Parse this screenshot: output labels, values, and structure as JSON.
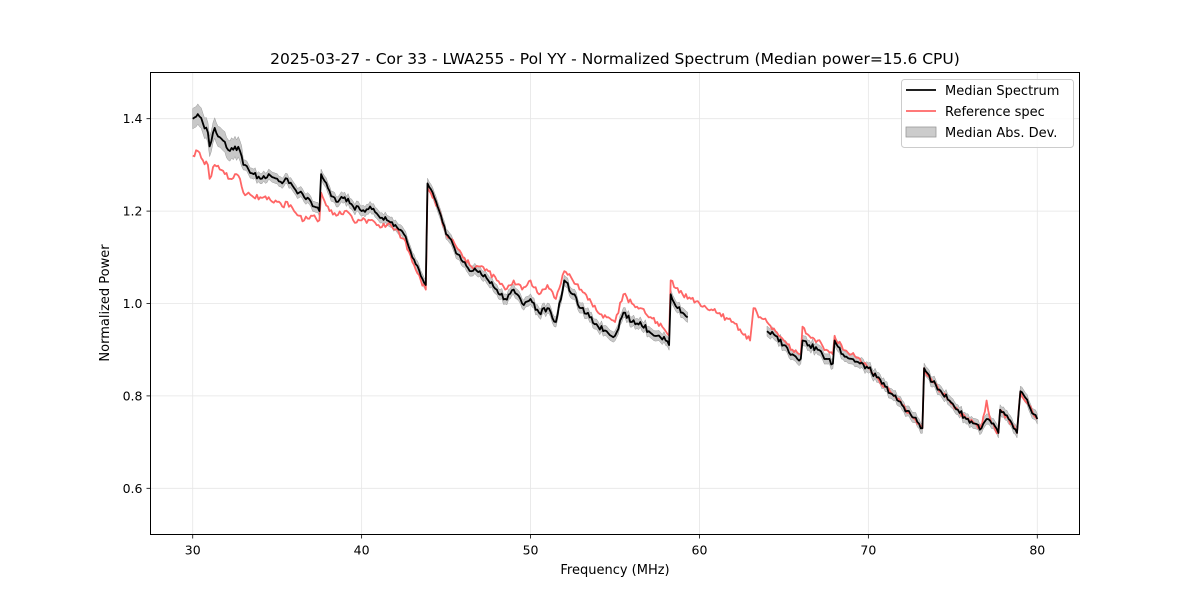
{
  "chart_data": {
    "type": "line",
    "title": "2025-03-27 - Cor 33 - LWA255 - Pol YY - Normalized Spectrum (Median power=15.6 CPU)",
    "xlabel": "Frequency (MHz)",
    "ylabel": "Normalized Power",
    "xlim": [
      27.5,
      82.5
    ],
    "ylim": [
      0.5,
      1.5
    ],
    "xticks": [
      30,
      40,
      50,
      60,
      70,
      80
    ],
    "yticks": [
      0.6,
      0.8,
      1.0,
      1.2,
      1.4
    ],
    "xtick_labels": [
      "30",
      "40",
      "50",
      "60",
      "70",
      "80"
    ],
    "ytick_labels": [
      "0.6",
      "0.8",
      "1.0",
      "1.2",
      "1.4"
    ],
    "grid": true,
    "legend_position": "top-right",
    "series": [
      {
        "name": "Median Spectrum",
        "color": "#000000",
        "segments": [
          {
            "x": [
              30.0,
              30.3,
              30.6,
              30.9,
              31.0,
              31.3,
              31.6,
              31.9,
              32.2,
              32.5,
              32.8,
              33.0,
              33.3,
              33.6,
              34.0,
              34.5,
              35.0,
              35.3,
              35.6,
              36.0,
              36.3,
              36.6,
              37.0,
              37.5,
              37.6,
              38.0,
              38.5,
              39.0,
              39.5,
              40.0,
              40.5,
              41.0,
              41.5,
              42.0,
              42.5,
              43.0,
              43.5,
              43.8,
              43.9,
              44.5,
              45.0,
              45.5,
              46.0,
              46.5,
              47.0,
              47.5,
              48.0,
              48.5,
              49.0,
              49.5,
              50.0,
              50.5,
              51.0,
              51.5,
              52.0,
              52.5,
              53.0,
              53.5,
              54.0,
              54.5,
              55.0,
              55.5,
              56.0,
              56.5,
              57.0,
              57.5,
              58.0,
              58.2,
              58.3,
              58.7,
              59.0,
              59.3
            ],
            "y": [
              1.4,
              1.41,
              1.39,
              1.37,
              1.34,
              1.38,
              1.36,
              1.35,
              1.33,
              1.34,
              1.33,
              1.3,
              1.29,
              1.28,
              1.27,
              1.28,
              1.27,
              1.26,
              1.27,
              1.25,
              1.24,
              1.23,
              1.22,
              1.2,
              1.28,
              1.25,
              1.22,
              1.23,
              1.21,
              1.2,
              1.21,
              1.19,
              1.18,
              1.17,
              1.15,
              1.1,
              1.06,
              1.04,
              1.26,
              1.21,
              1.15,
              1.12,
              1.09,
              1.07,
              1.07,
              1.05,
              1.03,
              1.01,
              1.03,
              1.0,
              1.01,
              0.98,
              0.99,
              0.96,
              1.05,
              1.02,
              0.99,
              0.97,
              0.95,
              0.94,
              0.93,
              0.98,
              0.96,
              0.96,
              0.94,
              0.93,
              0.92,
              0.91,
              1.02,
              0.99,
              0.98,
              0.97
            ]
          },
          {
            "x": [
              64.0,
              64.5,
              65.0,
              65.5,
              66.0,
              66.1,
              66.5,
              67.0,
              67.5,
              67.9,
              68.0,
              68.5,
              69.0,
              69.5,
              70.0,
              70.5,
              71.0,
              71.5,
              72.0,
              72.5,
              73.0,
              73.2,
              73.3,
              73.8,
              74.3,
              74.8,
              75.3,
              75.8,
              76.3,
              76.7,
              77.0,
              77.3,
              77.7,
              77.8,
              78.3,
              78.8,
              79.0,
              79.5,
              80.0
            ],
            "y": [
              0.94,
              0.93,
              0.91,
              0.89,
              0.88,
              0.92,
              0.91,
              0.9,
              0.88,
              0.87,
              0.92,
              0.89,
              0.88,
              0.87,
              0.86,
              0.84,
              0.82,
              0.8,
              0.78,
              0.76,
              0.74,
              0.73,
              0.86,
              0.83,
              0.81,
              0.79,
              0.77,
              0.75,
              0.74,
              0.73,
              0.75,
              0.74,
              0.72,
              0.77,
              0.75,
              0.72,
              0.81,
              0.78,
              0.75
            ]
          }
        ]
      },
      {
        "name": "Reference spec",
        "color": "#ff6666",
        "segments": [
          {
            "x": [
              30.0,
              30.3,
              30.6,
              30.9,
              31.0,
              31.3,
              31.6,
              31.9,
              32.2,
              32.5,
              32.8,
              33.0,
              33.3,
              33.6,
              34.0,
              34.5,
              35.0,
              35.3,
              35.6,
              36.0,
              36.3,
              36.6,
              37.0,
              37.5,
              37.6,
              38.0,
              38.5,
              39.0,
              39.5,
              40.0,
              40.5,
              41.0,
              41.5,
              42.0,
              42.5,
              43.0,
              43.5,
              43.8,
              43.9,
              44.5,
              45.0,
              45.5,
              46.0,
              46.5,
              47.0,
              47.5,
              48.0,
              48.5,
              49.0,
              49.5,
              50.0,
              50.5,
              51.0,
              51.5,
              52.0,
              52.5,
              53.0,
              53.5,
              54.0,
              54.5,
              55.0,
              55.5,
              56.0,
              56.5,
              57.0,
              57.5,
              58.0,
              58.2,
              58.3,
              59.0,
              60.0,
              61.0,
              62.0,
              63.0,
              63.2,
              63.5,
              64.0,
              64.5,
              65.0,
              65.5,
              66.0,
              66.1,
              66.5,
              67.0,
              67.5,
              67.9,
              68.0,
              68.5,
              69.0,
              69.5,
              70.0,
              70.5,
              71.0,
              71.5,
              72.0,
              72.5,
              73.0,
              73.2,
              73.3,
              73.8,
              74.3,
              74.8,
              75.3,
              75.8,
              76.3,
              76.7,
              77.0,
              77.3,
              77.7,
              77.8,
              78.3,
              78.8,
              79.0,
              79.5,
              80.0
            ],
            "y": [
              1.32,
              1.33,
              1.31,
              1.3,
              1.27,
              1.3,
              1.29,
              1.28,
              1.27,
              1.28,
              1.27,
              1.24,
              1.24,
              1.23,
              1.23,
              1.23,
              1.22,
              1.21,
              1.22,
              1.2,
              1.19,
              1.18,
              1.19,
              1.18,
              1.24,
              1.21,
              1.19,
              1.2,
              1.18,
              1.18,
              1.18,
              1.17,
              1.17,
              1.16,
              1.14,
              1.09,
              1.05,
              1.03,
              1.25,
              1.21,
              1.15,
              1.13,
              1.1,
              1.08,
              1.08,
              1.07,
              1.05,
              1.03,
              1.05,
              1.03,
              1.05,
              1.02,
              1.04,
              1.01,
              1.07,
              1.05,
              1.03,
              1.01,
              0.98,
              0.97,
              0.96,
              1.02,
              1.0,
              0.99,
              0.97,
              0.96,
              0.94,
              0.93,
              1.05,
              1.02,
              1.0,
              0.98,
              0.96,
              0.92,
              0.99,
              0.97,
              0.96,
              0.94,
              0.92,
              0.9,
              0.89,
              0.95,
              0.93,
              0.92,
              0.9,
              0.89,
              0.93,
              0.9,
              0.89,
              0.88,
              0.86,
              0.84,
              0.82,
              0.8,
              0.78,
              0.76,
              0.74,
              0.73,
              0.86,
              0.83,
              0.81,
              0.79,
              0.77,
              0.75,
              0.74,
              0.73,
              0.79,
              0.74,
              0.72,
              0.77,
              0.75,
              0.72,
              0.81,
              0.78,
              0.75
            ]
          }
        ]
      },
      {
        "name": "Median Abs. Dev.",
        "type": "band",
        "color": "#999999"
      }
    ]
  }
}
